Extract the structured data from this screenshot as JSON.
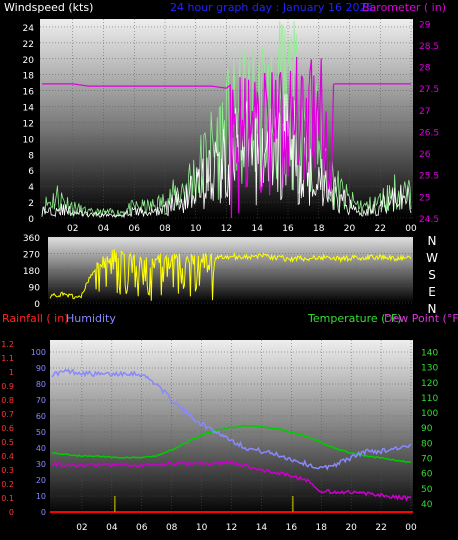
{
  "header": {
    "wind_title": "Windspeed (kts)",
    "graph_title": "24 hour graph day : January 16 2025",
    "baro_title": "Barometer ( in)"
  },
  "lower_header": {
    "rain_title": "Rainfall ( in)",
    "humidity_title": "Humidity",
    "temp_title": "Temperature (°F)",
    "dew_title": "Dew Point (°F)"
  },
  "colors": {
    "background": "#000000",
    "panel_top": "#e8e8e8",
    "panel_bottom": "#000000",
    "wind_speed": "#ffffff",
    "wind_gust": "#90ee90",
    "barometer": "#dd00dd",
    "wind_direction": "#ffff00",
    "rainfall": "#ff0000",
    "rain_marks": "#999900",
    "humidity": "#8888ff",
    "temperature": "#00cc00",
    "dew_point": "#cc00cc",
    "compass": "#ffffff"
  },
  "x_ticks": [
    "02",
    "04",
    "06",
    "08",
    "10",
    "12",
    "14",
    "16",
    "18",
    "20",
    "22",
    "00"
  ],
  "compass": [
    "N",
    "W",
    "S",
    "E",
    "N"
  ],
  "chart_data": [
    {
      "type": "line",
      "title": "24 hour graph day : January 16 2025",
      "ylabel": "Windspeed (kts)",
      "y2label": "Barometer ( in)",
      "ylim": [
        0,
        25
      ],
      "y2lim": [
        24.5,
        29.1
      ],
      "y_ticks": [
        "0",
        "2",
        "4",
        "6",
        "8",
        "10",
        "12",
        "14",
        "16",
        "18",
        "20",
        "22",
        "24"
      ],
      "y2_ticks": [
        "24.5",
        "25",
        "25.5",
        "26",
        "26.5",
        "27",
        "27.5",
        "28",
        "28.5",
        "29"
      ],
      "x_hours": [
        0,
        1,
        2,
        3,
        4,
        5,
        6,
        7,
        8,
        9,
        10,
        11,
        12,
        13,
        14,
        15,
        16,
        17,
        18,
        19,
        20,
        21,
        22,
        23,
        24
      ],
      "series": [
        {
          "name": "Wind speed",
          "values": [
            1,
            1.5,
            1,
            0.5,
            0.5,
            0.5,
            1,
            0.8,
            1.5,
            3,
            5,
            7,
            9,
            11,
            10,
            11,
            12,
            9,
            7,
            4,
            2,
            1,
            2,
            3,
            3
          ]
        },
        {
          "name": "Wind gust",
          "values": [
            2,
            4,
            2,
            1,
            1,
            1,
            2,
            2,
            3,
            5,
            8,
            12,
            16,
            18,
            20,
            20,
            22,
            19,
            15,
            6,
            3,
            2,
            3,
            5,
            4
          ]
        },
        {
          "name": "Barometer",
          "values": [
            27.6,
            27.6,
            27.6,
            27.55,
            27.55,
            27.55,
            27.55,
            27.55,
            27.55,
            27.55,
            27.55,
            27.55,
            27.5,
            27.8,
            28.1,
            27.9,
            28.3,
            28.4,
            28.6,
            27.6,
            27.6,
            27.6,
            27.6,
            27.6,
            27.6
          ]
        }
      ]
    },
    {
      "type": "line",
      "ylabel": "Wind direction",
      "ylim": [
        0,
        360
      ],
      "y_ticks": [
        "0",
        "90",
        "180",
        "270",
        "360"
      ],
      "x_hours": [
        0,
        1,
        2,
        3,
        4,
        5,
        6,
        7,
        8,
        9,
        10,
        11,
        12,
        13,
        14,
        15,
        16,
        17,
        18,
        19,
        20,
        21,
        22,
        23,
        24
      ],
      "series": [
        {
          "name": "Wind direction",
          "values": [
            40,
            45,
            30,
            190,
            270,
            260,
            250,
            240,
            245,
            250,
            255,
            250,
            255,
            250,
            260,
            250,
            240,
            245,
            250,
            240,
            245,
            250,
            250,
            245,
            245
          ]
        }
      ]
    },
    {
      "type": "line",
      "ylim_rain": [
        0,
        1.2
      ],
      "ylim_humidity": [
        0,
        100
      ],
      "ylim_temperature": [
        30,
        145
      ],
      "rain_ticks": [
        "0",
        "0.1",
        "0.2",
        "0.3",
        "0.4",
        "0.5",
        "0.6",
        "0.7",
        "0.8",
        "0.9",
        "1",
        "1.1",
        "1.2"
      ],
      "humidity_ticks": [
        "0",
        "10",
        "20",
        "30",
        "40",
        "50",
        "60",
        "70",
        "80",
        "90",
        "100"
      ],
      "temp_ticks": [
        "40",
        "50",
        "60",
        "70",
        "80",
        "90",
        "100",
        "110",
        "120",
        "130",
        "140"
      ],
      "x_hours": [
        0,
        1,
        2,
        3,
        4,
        5,
        6,
        7,
        8,
        9,
        10,
        11,
        12,
        13,
        14,
        15,
        16,
        17,
        18,
        19,
        20,
        21,
        22,
        23,
        24
      ],
      "series": [
        {
          "name": "Humidity",
          "values": [
            86,
            88,
            87,
            86,
            86,
            87,
            86,
            80,
            70,
            62,
            55,
            50,
            45,
            40,
            38,
            36,
            33,
            30,
            27,
            30,
            34,
            38,
            38,
            40,
            41
          ]
        },
        {
          "name": "Temperature",
          "values": [
            73,
            72,
            71,
            71,
            70,
            70,
            70,
            71,
            75,
            80,
            85,
            88,
            90,
            91,
            90,
            89,
            87,
            84,
            80,
            76,
            73,
            71,
            70,
            68,
            67
          ]
        },
        {
          "name": "Dew Point",
          "values": [
            66,
            65,
            65,
            65,
            65,
            65,
            65,
            65,
            66,
            66,
            66,
            66,
            67,
            64,
            62,
            60,
            58,
            55,
            48,
            47,
            47,
            46,
            45,
            44,
            43
          ]
        },
        {
          "name": "Rainfall",
          "values": [
            0,
            0,
            0,
            0,
            0,
            0,
            0,
            0,
            0,
            0,
            0,
            0,
            0,
            0,
            0,
            0,
            0,
            0,
            0,
            0,
            0,
            0,
            0,
            0,
            0
          ]
        }
      ]
    }
  ]
}
